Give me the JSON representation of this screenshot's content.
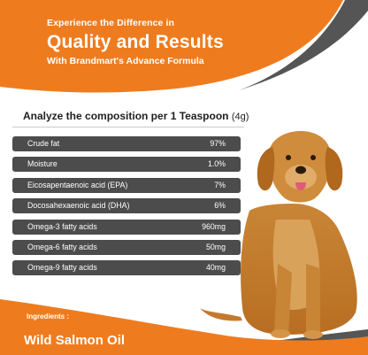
{
  "colors": {
    "accent": "#ee7c1f",
    "dark": "#545454",
    "row": "#4c4c4c"
  },
  "header": {
    "tagline": "Experience the Difference in",
    "headline": "Quality and Results",
    "subline": "With Brandmart's Advance Formula"
  },
  "composition": {
    "title": "Analyze the composition per 1 Teaspoon",
    "unit": "(4g)",
    "rows": [
      {
        "label": "Crude fat",
        "value": "97%"
      },
      {
        "label": "Moisture",
        "value": "1.0%"
      },
      {
        "label": "Eicosapentaenoic acid (EPA)",
        "value": "7%"
      },
      {
        "label": "Docosahexaenoic acid (DHA)",
        "value": "6%"
      },
      {
        "label": "Omega-3 fatty acids",
        "value": "960mg"
      },
      {
        "label": "Omega-6 fatty acids",
        "value": "50mg"
      },
      {
        "label": "Omega-9 fatty acids",
        "value": "40mg"
      }
    ]
  },
  "footer": {
    "ingredients_label": "Ingredients :",
    "product": "Wild Salmon Oil"
  },
  "images": {
    "dog": "golden-retriever-sitting"
  }
}
